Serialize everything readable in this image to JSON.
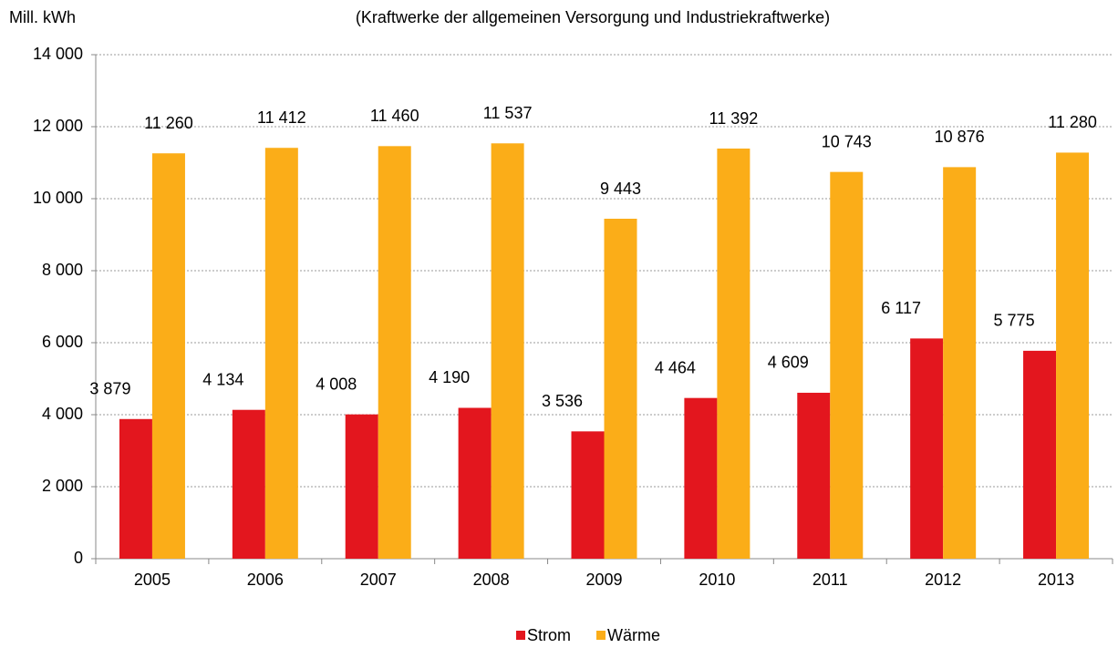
{
  "chart_data": {
    "type": "bar",
    "title": "(Kraftwerke der allgemeinen Versorgung und Industriekraftwerke)",
    "y_label": "Mill. kWh",
    "categories": [
      "2005",
      "2006",
      "2007",
      "2008",
      "2009",
      "2010",
      "2011",
      "2012",
      "2013"
    ],
    "series": [
      {
        "name": "Strom",
        "color": "#e3161e",
        "values": [
          3879,
          4134,
          4008,
          4190,
          3536,
          4464,
          4609,
          6117,
          5775
        ],
        "value_labels": [
          "3 879",
          "4 134",
          "4 008",
          "4 190",
          "3 536",
          "4 464",
          "4 609",
          "6 117",
          "5 775"
        ]
      },
      {
        "name": "Wärme",
        "color": "#fbad18",
        "values": [
          11260,
          11412,
          11460,
          11537,
          9443,
          11392,
          10743,
          10876,
          11280
        ],
        "value_labels": [
          "11 260",
          "11 412",
          "11 460",
          "11 537",
          "9 443",
          "11 392",
          "10 743",
          "10 876",
          "11 280"
        ]
      }
    ],
    "ylim": [
      0,
      14000
    ],
    "yticks": [
      0,
      {
        "value": 2000,
        "label": "2 000"
      },
      {
        "value": 4000,
        "label": "4 000"
      },
      {
        "value": 6000,
        "label": "6 000"
      },
      {
        "value": 8000,
        "label": "8 000"
      },
      {
        "value": 10000,
        "label": "10 000"
      },
      {
        "value": 12000,
        "label": "12 000"
      },
      {
        "value": 14000,
        "label": "14 000"
      }
    ],
    "grid": true,
    "legend": "bottom"
  }
}
